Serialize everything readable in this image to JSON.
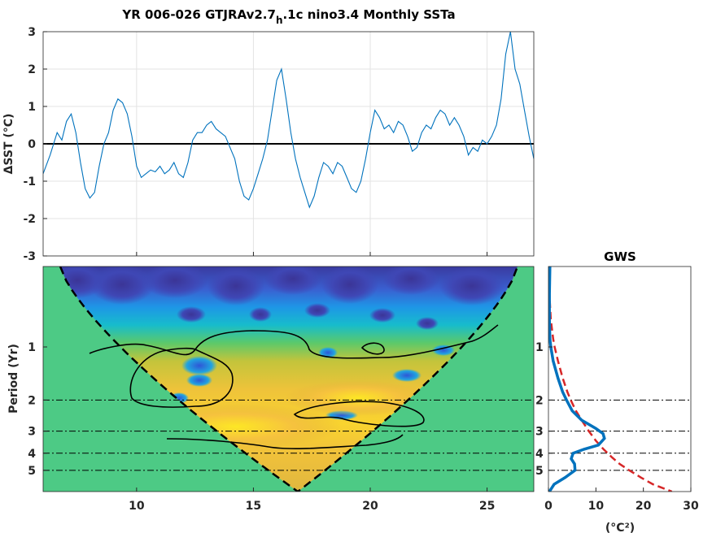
{
  "chart_data": [
    {
      "type": "line",
      "title_main": "YR 006-026 GTJRAv2.7",
      "title_sub": "h",
      "title_rest": ".1c nino3.4 Monthly SSTa",
      "ylabel": "ΔSST (°C)",
      "xlim": [
        6,
        27
      ],
      "ylim": [
        -3,
        3
      ],
      "yticks": [
        "3",
        "2",
        "1",
        "0",
        "-1",
        "-2",
        "-3"
      ],
      "xticks": [
        "10",
        "15",
        "20",
        "25"
      ],
      "grid": true,
      "series": [
        {
          "color": "#0072bd",
          "x": [
            6.0,
            6.3,
            6.6,
            6.8,
            7.0,
            7.2,
            7.4,
            7.6,
            7.8,
            8.0,
            8.2,
            8.4,
            8.6,
            8.8,
            9.0,
            9.2,
            9.4,
            9.6,
            9.8,
            10.0,
            10.2,
            10.4,
            10.6,
            10.8,
            11.0,
            11.2,
            11.4,
            11.6,
            11.8,
            12.0,
            12.2,
            12.4,
            12.6,
            12.8,
            13.0,
            13.2,
            13.4,
            13.6,
            13.8,
            14.0,
            14.2,
            14.4,
            14.6,
            14.8,
            15.0,
            15.2,
            15.4,
            15.6,
            15.8,
            16.0,
            16.2,
            16.4,
            16.6,
            16.8,
            17.0,
            17.2,
            17.4,
            17.6,
            17.8,
            18.0,
            18.2,
            18.4,
            18.6,
            18.8,
            19.0,
            19.2,
            19.4,
            19.6,
            19.8,
            20.0,
            20.2,
            20.4,
            20.6,
            20.8,
            21.0,
            21.2,
            21.4,
            21.6,
            21.8,
            22.0,
            22.2,
            22.4,
            22.6,
            22.8,
            23.0,
            23.2,
            23.4,
            23.6,
            23.8,
            24.0,
            24.2,
            24.4,
            24.6,
            24.8,
            25.0,
            25.2,
            25.4,
            25.6,
            25.8,
            26.0,
            26.2,
            26.4,
            26.6,
            26.8,
            27.0
          ],
          "y": [
            -0.8,
            -0.3,
            0.3,
            0.1,
            0.6,
            0.8,
            0.3,
            -0.5,
            -1.2,
            -1.45,
            -1.3,
            -0.6,
            0.0,
            0.3,
            0.9,
            1.2,
            1.1,
            0.8,
            0.2,
            -0.6,
            -0.9,
            -0.8,
            -0.7,
            -0.75,
            -0.6,
            -0.8,
            -0.7,
            -0.5,
            -0.8,
            -0.9,
            -0.5,
            0.1,
            0.3,
            0.3,
            0.5,
            0.6,
            0.4,
            0.3,
            0.2,
            -0.1,
            -0.4,
            -1.0,
            -1.4,
            -1.5,
            -1.2,
            -0.8,
            -0.4,
            0.1,
            0.9,
            1.7,
            2.0,
            1.2,
            0.3,
            -0.4,
            -0.9,
            -1.3,
            -1.7,
            -1.4,
            -0.9,
            -0.5,
            -0.6,
            -0.8,
            -0.5,
            -0.6,
            -0.9,
            -1.2,
            -1.3,
            -1.0,
            -0.4,
            0.3,
            0.9,
            0.7,
            0.4,
            0.5,
            0.3,
            0.6,
            0.5,
            0.2,
            -0.2,
            -0.1,
            0.3,
            0.5,
            0.4,
            0.7,
            0.9,
            0.8,
            0.5,
            0.7,
            0.5,
            0.2,
            -0.3,
            -0.1,
            -0.2,
            0.1,
            0.0,
            0.2,
            0.5,
            1.2,
            2.4,
            3.0,
            2.0,
            1.6,
            0.9,
            0.2,
            -0.4
          ]
        }
      ]
    },
    {
      "type": "heatmap",
      "title": "",
      "ylabel": "Period (Yr)",
      "xlim": [
        6,
        27
      ],
      "yticks": [
        "1",
        "2",
        "3",
        "4",
        "5"
      ],
      "xticks": [
        "10",
        "15",
        "20",
        "25"
      ],
      "reference_periods": [
        2,
        3,
        4,
        5
      ],
      "cone_of_influence": true
    },
    {
      "type": "line",
      "title": "GWS",
      "xlabel": "(°C²)",
      "xlim": [
        0,
        30
      ],
      "xticks": [
        "0",
        "10",
        "20",
        "30"
      ],
      "yticks": [
        "1",
        "2",
        "3",
        "4",
        "5"
      ],
      "reference_periods": [
        2,
        3,
        4,
        5
      ],
      "series": [
        {
          "color": "#0072bd",
          "period": [
            0.35,
            0.5,
            0.7,
            0.9,
            1.0,
            1.2,
            1.5,
            1.8,
            2.0,
            2.3,
            2.6,
            2.9,
            3.1,
            3.3,
            3.6,
            3.8,
            4.0,
            4.3,
            4.6,
            5.0,
            5.5,
            6.0,
            6.6
          ],
          "power": [
            0.3,
            0.2,
            0.2,
            0.3,
            0.5,
            1.0,
            2.0,
            3.0,
            3.8,
            5.0,
            7.0,
            10.0,
            11.5,
            11.8,
            10.5,
            7.5,
            5.2,
            4.8,
            5.5,
            5.6,
            3.5,
            1.2,
            0.2
          ]
        },
        {
          "color": "#d62728",
          "dashed": true,
          "period": [
            0.35,
            0.5,
            0.7,
            0.9,
            1.0,
            1.2,
            1.5,
            1.8,
            2.0,
            2.3,
            2.6,
            3.0,
            3.4,
            3.8,
            4.2,
            4.6,
            5.0,
            5.5,
            6.0,
            6.6
          ],
          "power": [
            0.1,
            0.2,
            0.5,
            1.0,
            1.3,
            2.0,
            3.0,
            4.0,
            4.7,
            5.8,
            7.0,
            8.5,
            10.0,
            11.6,
            13.3,
            15.0,
            17.0,
            19.5,
            22.0,
            26.0
          ]
        }
      ]
    }
  ]
}
